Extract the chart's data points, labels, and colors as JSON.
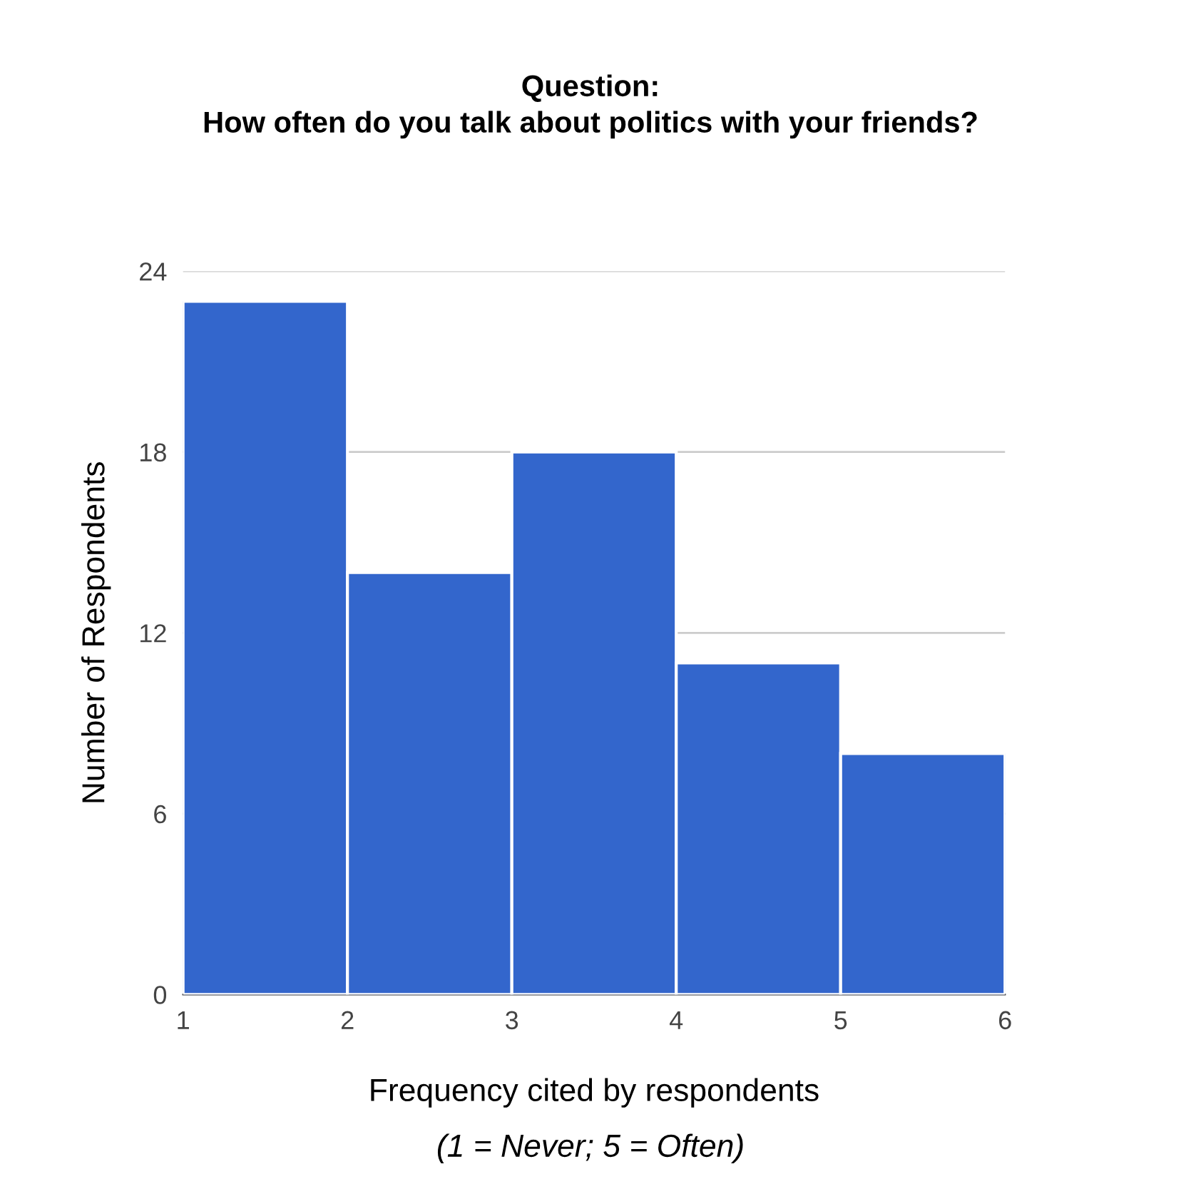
{
  "chart_data": {
    "type": "histogram",
    "title": "Question:\nHow often do you talk about politics with your friends?",
    "xlabel": "Frequency cited by respondents",
    "ylabel": "Number of Respondents",
    "annotations": [
      "(1 = Never; 5 = Often)"
    ],
    "bins": [
      1,
      2,
      3,
      4,
      5,
      6
    ],
    "values": [
      23,
      14,
      18,
      11,
      8
    ],
    "color": "#3366cc",
    "xlim": [
      1,
      6
    ],
    "xticks": [
      1,
      2,
      3,
      4,
      5,
      6
    ],
    "ylim": [
      0,
      24
    ],
    "yticks": [
      0,
      6,
      12,
      18,
      24
    ],
    "grid": "y",
    "legend": false
  }
}
